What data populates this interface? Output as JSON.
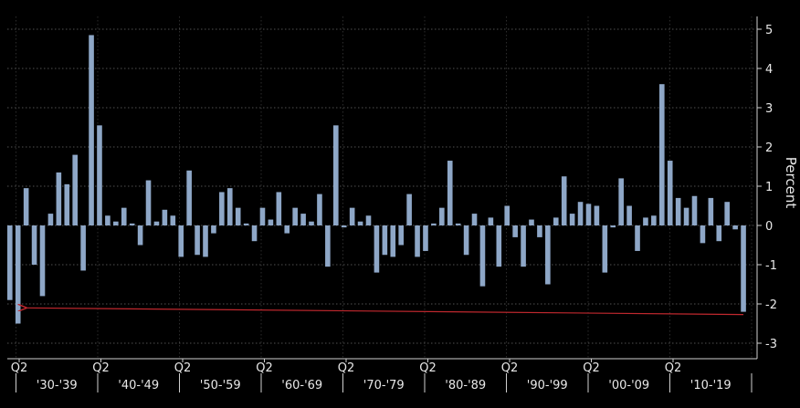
{
  "chart_data": {
    "type": "bar",
    "title": "",
    "xlabel": "",
    "ylabel": "Percent",
    "ylim": [
      -3,
      5
    ],
    "yticks": [
      5,
      4,
      3,
      2,
      1,
      0,
      -1,
      -2,
      -3
    ],
    "grid": true,
    "bar_color": "#8ea7c7",
    "annotation_color": "#c0282e",
    "decades": [
      "'30-'39",
      "'40-'49",
      "'50-'59",
      "'60-'69",
      "'70-'79",
      "'80-'89",
      "'90-'99",
      "'00-'09",
      "'10-'19"
    ],
    "quarter_label": "Q2",
    "values": [
      -1.9,
      -2.5,
      0.95,
      -1.0,
      -1.8,
      0.3,
      1.35,
      1.05,
      1.8,
      -1.15,
      4.85,
      2.55,
      0.25,
      0.1,
      0.45,
      0.05,
      -0.5,
      1.15,
      0.1,
      0.4,
      0.25,
      -0.8,
      1.4,
      -0.75,
      -0.8,
      -0.2,
      0.85,
      0.95,
      0.45,
      0.05,
      -0.4,
      0.45,
      0.15,
      0.85,
      -0.2,
      0.45,
      0.3,
      0.1,
      0.8,
      -1.05,
      2.55,
      -0.05,
      0.45,
      0.1,
      0.25,
      -1.2,
      -0.75,
      -0.8,
      -0.5,
      0.8,
      -0.8,
      -0.65,
      0.05,
      0.45,
      1.65,
      0.05,
      -0.75,
      0.3,
      -1.55,
      0.2,
      -1.05,
      0.5,
      -0.3,
      -1.05,
      0.15,
      -0.3,
      -1.5,
      0.2,
      1.25,
      0.3,
      0.6,
      0.55,
      0.5,
      -1.2,
      -0.05,
      1.2,
      0.5,
      -0.65,
      0.2,
      0.25,
      3.6,
      1.65,
      0.7,
      0.45,
      0.75,
      -0.45,
      0.7,
      -0.4,
      0.6,
      -0.1,
      -2.2
    ],
    "annotation": {
      "type": "arrow",
      "from_index": 90,
      "to_index": 1,
      "y_value": -2.2
    }
  }
}
